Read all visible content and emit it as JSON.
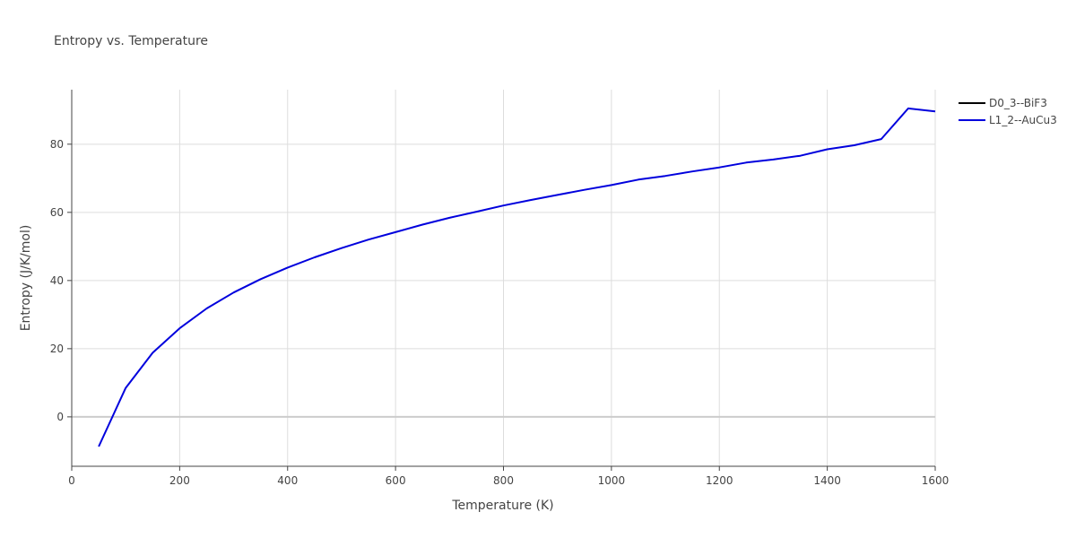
{
  "chart_data": {
    "type": "line",
    "title": "Entropy vs. Temperature",
    "xlabel": "Temperature (K)",
    "ylabel": "Entropy (J/K/mol)",
    "xlim": [
      0,
      1600
    ],
    "ylim": [
      -14.5,
      96
    ],
    "x_ticks": [
      0,
      200,
      400,
      600,
      800,
      1000,
      1200,
      1400,
      1600
    ],
    "y_ticks": [
      0,
      20,
      40,
      60,
      80
    ],
    "grid": true,
    "legend_position": "top-right",
    "series": [
      {
        "name": "D0_3--BiF3",
        "color": "#000000",
        "x": [],
        "y": []
      },
      {
        "name": "L1_2--AuCu3",
        "color": "#0000dd",
        "x": [
          50,
          100,
          150,
          200,
          250,
          300,
          350,
          400,
          450,
          500,
          550,
          600,
          650,
          700,
          750,
          800,
          850,
          900,
          950,
          1000,
          1050,
          1100,
          1150,
          1200,
          1250,
          1300,
          1350,
          1400,
          1450,
          1500,
          1550,
          1600
        ],
        "y": [
          -8.7,
          8.5,
          18.8,
          26.0,
          31.8,
          36.5,
          40.4,
          43.8,
          46.8,
          49.5,
          52.0,
          54.2,
          56.4,
          58.4,
          60.2,
          62.0,
          63.6,
          65.1,
          66.6,
          68.0,
          69.6,
          70.7,
          72.0,
          73.2,
          74.6,
          75.5,
          76.6,
          78.5,
          79.7,
          81.5,
          90.5,
          89.6
        ]
      }
    ]
  }
}
